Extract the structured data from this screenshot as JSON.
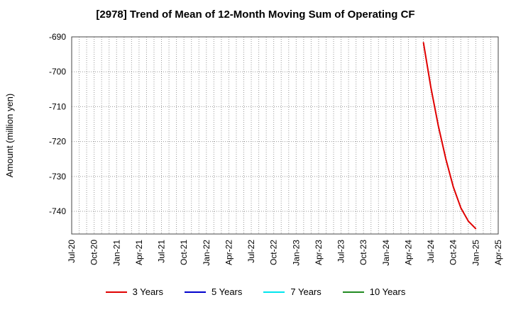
{
  "chart_data": {
    "type": "line",
    "title": "[2978]  Trend of Mean of 12-Month Moving Sum of Operating CF",
    "ylabel": "Amount (million yen)",
    "xlabel": "",
    "ylim": [
      -746.5,
      -690
    ],
    "y_ticks": [
      -690,
      -700,
      -710,
      -720,
      -730,
      -740
    ],
    "x_tick_labels": [
      "Jul-20",
      "Oct-20",
      "Jan-21",
      "Apr-21",
      "Jul-21",
      "Oct-21",
      "Jan-22",
      "Apr-22",
      "Jul-22",
      "Oct-22",
      "Jan-23",
      "Apr-23",
      "Jul-23",
      "Oct-23",
      "Jan-24",
      "Apr-24",
      "Jul-24",
      "Oct-24",
      "Jan-25",
      "Apr-25"
    ],
    "x_range": [
      "2020-07",
      "2025-04"
    ],
    "grid": true,
    "legend_position": "bottom",
    "series": [
      {
        "name": "3 Years",
        "color": "#e00000",
        "x": [
          "2024-06",
          "2024-07",
          "2024-08",
          "2024-09",
          "2024-10",
          "2024-11",
          "2024-12",
          "2025-01"
        ],
        "values": [
          -691.6,
          -704.5,
          -715.5,
          -725.0,
          -733.0,
          -739.0,
          -742.8,
          -745.0
        ]
      },
      {
        "name": "5 Years",
        "color": "#0000cc",
        "x": [],
        "values": []
      },
      {
        "name": "7 Years",
        "color": "#00e5ee",
        "x": [],
        "values": []
      },
      {
        "name": "10 Years",
        "color": "#228b22",
        "x": [],
        "values": []
      }
    ]
  }
}
